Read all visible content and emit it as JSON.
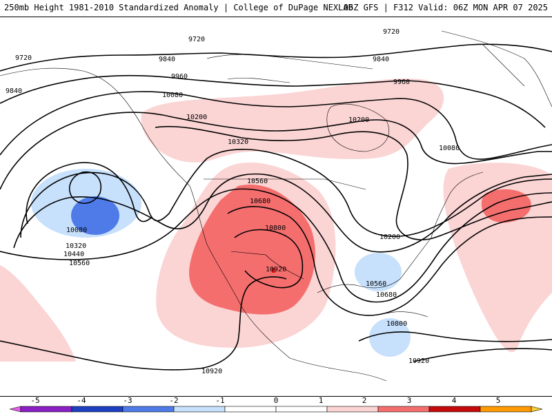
{
  "header": {
    "title": "250mb Height 1981-2010 Standardized Anomaly | College of DuPage NEXLAB",
    "run_info": "06Z GFS | F312 Valid: 06Z MON APR 07 2025"
  },
  "map": {
    "contour_labels": [
      "9720",
      "9720",
      "9720",
      "9840",
      "9840",
      "9840",
      "9960",
      "9960",
      "10080",
      "10080",
      "10080",
      "10200",
      "10200",
      "10200",
      "10320",
      "10320",
      "10440",
      "10560",
      "10560",
      "10560",
      "10680",
      "10680",
      "10800",
      "10800",
      "10920",
      "10920",
      "10920"
    ],
    "colors": {
      "anom_neg_1": "#c7e0fb",
      "anom_neg_2": "#4f7be8",
      "anom_pos_1": "#fbd4d4",
      "anom_pos_2": "#f56e6e",
      "anom_pos_3": "#d91c1c",
      "contour": "#000000"
    }
  },
  "colorbar": {
    "ticks": [
      "-5",
      "-4",
      "-3",
      "-2",
      "-1",
      "0",
      "1",
      "2",
      "3",
      "4",
      "5"
    ],
    "colors": [
      "#e35fe8",
      "#8a1fc4",
      "#1d3fc0",
      "#4f7be8",
      "#c7e0fb",
      "#ffffff",
      "#ffffff",
      "#fbd4d4",
      "#f56e6e",
      "#c40a0a",
      "#ff9a00",
      "#f5cc3a"
    ]
  }
}
